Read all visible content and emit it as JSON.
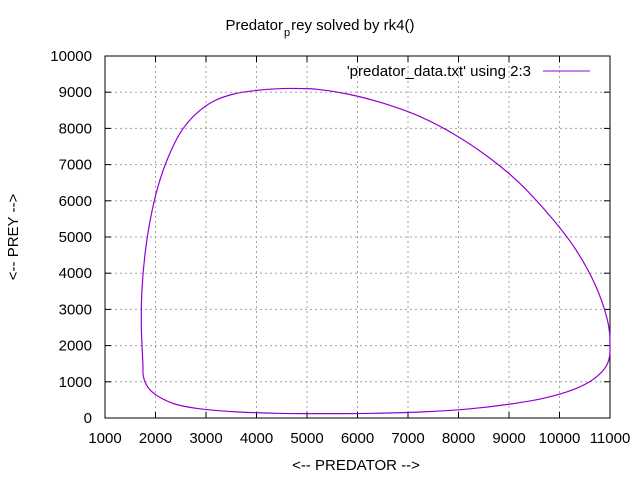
{
  "chart_data": {
    "type": "line",
    "title": {
      "prefix": "Predator",
      "subscript": "p",
      "suffix": "rey solved by rk4()"
    },
    "xlabel": "<-- PREDATOR -->",
    "ylabel": "<-- PREY -->",
    "xlim": [
      1000,
      11000
    ],
    "ylim": [
      0,
      10000
    ],
    "x_ticks": [
      "1000",
      "2000",
      "3000",
      "4000",
      "5000",
      "6000",
      "7000",
      "8000",
      "9000",
      "10000",
      "11000"
    ],
    "y_ticks": [
      "0",
      "1000",
      "2000",
      "3000",
      "4000",
      "5000",
      "6000",
      "7000",
      "8000",
      "9000",
      "10000"
    ],
    "grid": true,
    "legend_position": "top-right",
    "series": [
      {
        "name": "'predator_data.txt' using 2:3",
        "color": "#9400d3",
        "x": [
          1750,
          1720,
          1730,
          1790,
          1900,
          2050,
          2250,
          2500,
          2800,
          3150,
          3550,
          4000,
          4500,
          4850,
          5200,
          5800,
          6500,
          7200,
          7900,
          8600,
          9200,
          9800,
          10300,
          10700,
          10950,
          11000,
          10950,
          10700,
          10300,
          9700,
          9000,
          8200,
          7300,
          6300,
          5300,
          4400,
          3600,
          2900,
          2400,
          2050,
          1850,
          1760,
          1750
        ],
        "y": [
          1500,
          2500,
          3500,
          4500,
          5500,
          6400,
          7200,
          7900,
          8400,
          8750,
          8950,
          9050,
          9100,
          9100,
          9080,
          8950,
          8700,
          8350,
          7850,
          7200,
          6500,
          5600,
          4700,
          3700,
          2700,
          2000,
          1500,
          1100,
          800,
          550,
          380,
          250,
          170,
          130,
          120,
          130,
          170,
          250,
          380,
          600,
          850,
          1150,
          1500
        ]
      }
    ]
  }
}
